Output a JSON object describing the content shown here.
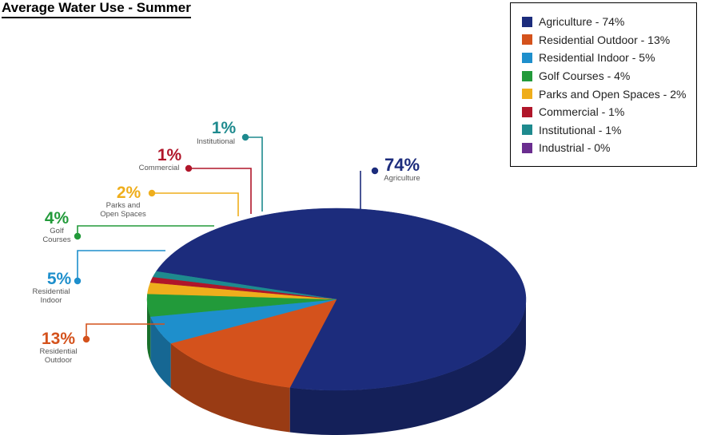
{
  "chart_data": {
    "type": "pie",
    "title": "Average Water Use - Summer",
    "legend_position": "top-right",
    "categories": [
      "Agriculture",
      "Residential Outdoor",
      "Residential Indoor",
      "Golf Courses",
      "Parks and Open Spaces",
      "Commercial",
      "Institutional",
      "Industrial"
    ],
    "values": [
      74,
      13,
      5,
      4,
      2,
      1,
      1,
      0
    ],
    "colors": [
      "#1c2c7c",
      "#d4521c",
      "#1e8fcc",
      "#229a3a",
      "#efae1c",
      "#b0162a",
      "#1e8a8e",
      "#6a2d8f"
    ],
    "legend_labels": [
      "Agriculture - 74%",
      "Residential Outdoor - 13%",
      "Residential Indoor - 5%",
      "Golf Courses - 4%",
      "Parks and Open Spaces - 2%",
      "Commercial - 1%",
      "Institutional - 1%",
      "Industrial - 0%"
    ],
    "callouts": [
      {
        "pct": "74%",
        "label": [
          "Agriculture"
        ]
      },
      {
        "pct": "13%",
        "label": [
          "Residential",
          "Outdoor"
        ]
      },
      {
        "pct": "5%",
        "label": [
          "Residential",
          "Indoor"
        ]
      },
      {
        "pct": "4%",
        "label": [
          "Golf",
          "Courses"
        ]
      },
      {
        "pct": "2%",
        "label": [
          "Parks and",
          "Open Spaces"
        ]
      },
      {
        "pct": "1%",
        "label": [
          "Commercial"
        ]
      },
      {
        "pct": "1%",
        "label": [
          "Institutional"
        ]
      }
    ]
  }
}
